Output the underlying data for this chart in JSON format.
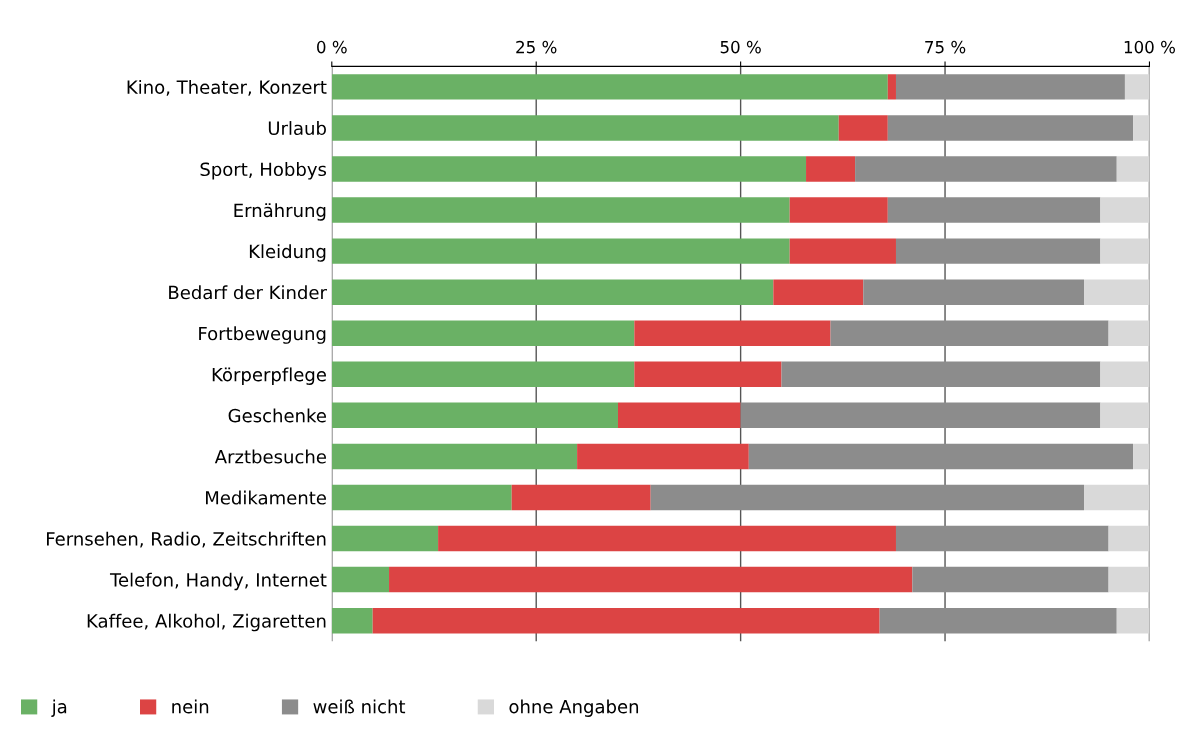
{
  "chart_data": {
    "type": "bar",
    "orientation": "horizontal",
    "stacked": true,
    "categories": [
      "Kino, Theater, Konzert",
      "Urlaub",
      "Sport, Hobbys",
      "Ernährung",
      "Kleidung",
      "Bedarf der Kinder",
      "Fortbewegung",
      "Körperpflege",
      "Geschenke",
      "Arztbesuche",
      "Medikamente",
      "Fernsehen, Radio, Zeitschriften",
      "Telefon, Handy, Internet",
      "Kaffee, Alkohol, Zigaretten"
    ],
    "series": [
      {
        "name": "ja",
        "color": "#6ab165",
        "values": [
          68,
          62,
          58,
          56,
          56,
          54,
          37,
          37,
          35,
          30,
          22,
          13,
          7,
          5
        ]
      },
      {
        "name": "nein",
        "color": "#dc4444",
        "values": [
          1,
          6,
          6,
          12,
          13,
          11,
          24,
          18,
          15,
          21,
          17,
          56,
          64,
          62
        ]
      },
      {
        "name": "weiß nicht",
        "color": "#8c8c8c",
        "values": [
          28,
          30,
          32,
          26,
          25,
          27,
          34,
          39,
          44,
          47,
          53,
          26,
          24,
          29
        ]
      },
      {
        "name": "ohne Angaben",
        "color": "#d9d9d9",
        "values": [
          3,
          2,
          4,
          6,
          6,
          8,
          5,
          6,
          6,
          2,
          8,
          5,
          5,
          4
        ]
      }
    ],
    "xlim": [
      0,
      100
    ],
    "xticks": [
      {
        "value": 0,
        "label": "0 %"
      },
      {
        "value": 25,
        "label": "25 %"
      },
      {
        "value": 50,
        "label": "50 %"
      },
      {
        "value": 75,
        "label": "75 %"
      },
      {
        "value": 100,
        "label": "100 %"
      }
    ],
    "grid": "x",
    "legend": "bottom"
  }
}
